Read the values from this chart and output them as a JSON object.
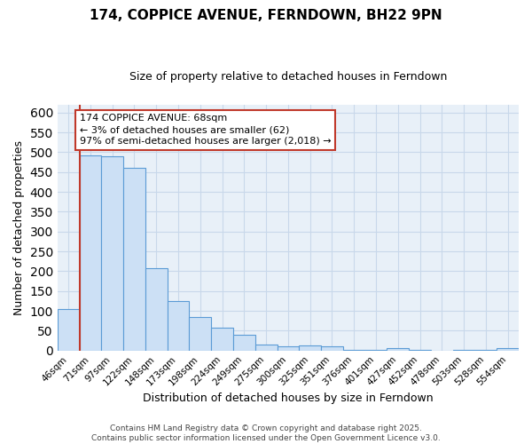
{
  "title": "174, COPPICE AVENUE, FERNDOWN, BH22 9PN",
  "subtitle": "Size of property relative to detached houses in Ferndown",
  "xlabel": "Distribution of detached houses by size in Ferndown",
  "ylabel": "Number of detached properties",
  "categories": [
    "46sqm",
    "71sqm",
    "97sqm",
    "122sqm",
    "148sqm",
    "173sqm",
    "198sqm",
    "224sqm",
    "249sqm",
    "275sqm",
    "300sqm",
    "325sqm",
    "351sqm",
    "376sqm",
    "401sqm",
    "427sqm",
    "452sqm",
    "478sqm",
    "503sqm",
    "528sqm",
    "554sqm"
  ],
  "values": [
    105,
    493,
    490,
    460,
    207,
    124,
    84,
    57,
    39,
    16,
    10,
    13,
    10,
    2,
    1,
    7,
    1,
    0,
    1,
    1,
    6
  ],
  "bar_color": "#cce0f5",
  "bar_edge_color": "#5b9bd5",
  "vline_color": "#c0392b",
  "annotation_text": "174 COPPICE AVENUE: 68sqm\n← 3% of detached houses are smaller (62)\n97% of semi-detached houses are larger (2,018) →",
  "annotation_box_facecolor": "#ffffff",
  "annotation_box_edgecolor": "#c0392b",
  "grid_color": "#c8d8ea",
  "axes_facecolor": "#e8f0f8",
  "fig_facecolor": "#ffffff",
  "footer": "Contains HM Land Registry data © Crown copyright and database right 2025.\nContains public sector information licensed under the Open Government Licence v3.0.",
  "ylim": [
    0,
    620
  ],
  "yticks": [
    0,
    50,
    100,
    150,
    200,
    250,
    300,
    350,
    400,
    450,
    500,
    550,
    600
  ],
  "title_fontsize": 11,
  "subtitle_fontsize": 9,
  "xlabel_fontsize": 9,
  "ylabel_fontsize": 9,
  "tick_fontsize": 7.5,
  "footer_fontsize": 6.5,
  "annotation_fontsize": 8
}
